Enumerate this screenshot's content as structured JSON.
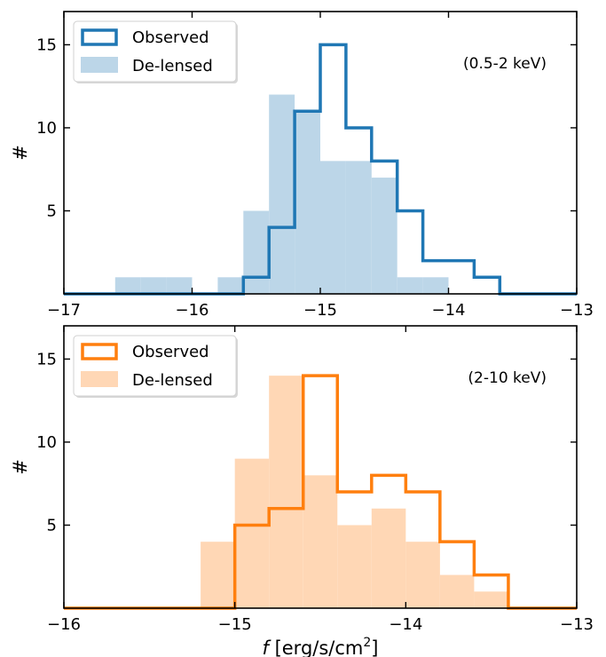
{
  "chart_data": [
    {
      "type": "histogram",
      "annotation": "(0.5-2 keV)",
      "ylabel": "#",
      "xlabel": "",
      "xlim": [
        -17,
        -13
      ],
      "ylim": [
        0,
        17
      ],
      "xticks": [
        -17,
        -16,
        -15,
        -14,
        -13
      ],
      "xtick_labels": [
        "−17",
        "−16",
        "−15",
        "−14",
        "−13"
      ],
      "yticks": [
        5,
        10,
        15
      ],
      "ytick_labels": [
        "5",
        "10",
        "15"
      ],
      "bin_edges": [
        -16.6,
        -16.4,
        -16.2,
        -16.0,
        -15.8,
        -15.6,
        -15.4,
        -15.2,
        -15.0,
        -14.8,
        -14.6,
        -14.4,
        -14.2,
        -14.0,
        -13.8,
        -13.6
      ],
      "legend": {
        "position": "top-left"
      },
      "series": [
        {
          "name": "Observed",
          "style": "step",
          "color": "#1f77b4",
          "values": [
            0,
            0,
            0,
            0,
            0,
            1,
            4,
            11,
            15,
            10,
            8,
            5,
            2,
            2,
            1
          ]
        },
        {
          "name": "De-lensed",
          "style": "filled",
          "color": "#1f77b4",
          "values": [
            1,
            1,
            1,
            0,
            1,
            5,
            12,
            11,
            8,
            8,
            7,
            1,
            1,
            0,
            0
          ]
        }
      ]
    },
    {
      "type": "histogram",
      "annotation": "(2-10 keV)",
      "ylabel": "#",
      "xlabel": "f [erg/s/cm²]",
      "xlabel_parts": {
        "var": "f",
        "unit": " [erg/s/cm",
        "sup": "2",
        "close": "]"
      },
      "xlim": [
        -16,
        -13
      ],
      "ylim": [
        0,
        17
      ],
      "xticks": [
        -16,
        -15,
        -14,
        -13
      ],
      "xtick_labels": [
        "−16",
        "−15",
        "−14",
        "−13"
      ],
      "yticks": [
        5,
        10,
        15
      ],
      "ytick_labels": [
        "5",
        "10",
        "15"
      ],
      "bin_edges": [
        -15.2,
        -15.0,
        -14.8,
        -14.6,
        -14.4,
        -14.2,
        -14.0,
        -13.8,
        -13.6,
        -13.4
      ],
      "legend": {
        "position": "top-left"
      },
      "series": [
        {
          "name": "Observed",
          "style": "step",
          "color": "#ff7f0e",
          "values": [
            0,
            5,
            6,
            14,
            7,
            8,
            7,
            4,
            2
          ]
        },
        {
          "name": "De-lensed",
          "style": "filled",
          "color": "#ff7f0e",
          "values": [
            4,
            9,
            14,
            8,
            5,
            6,
            4,
            2,
            1
          ]
        }
      ]
    }
  ]
}
